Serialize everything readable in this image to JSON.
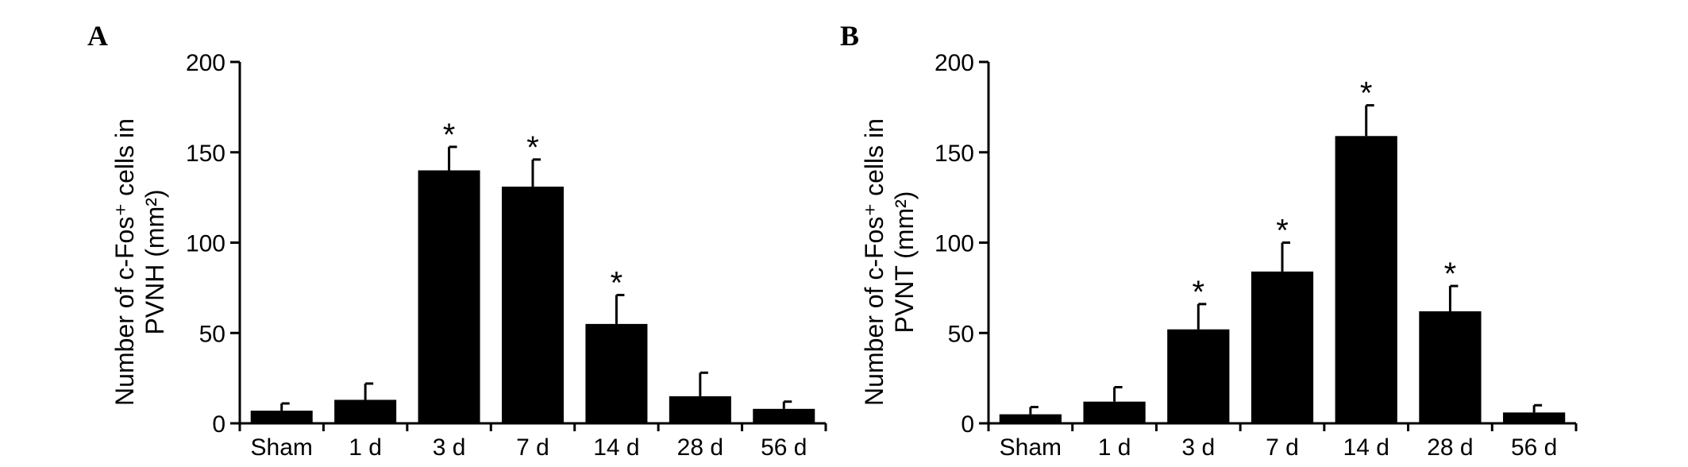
{
  "chart_data": [
    {
      "type": "bar",
      "panel": "A",
      "categories": [
        "Sham",
        "1 d",
        "3 d",
        "7 d",
        "14 d",
        "28 d",
        "56 d"
      ],
      "series": [
        {
          "values": [
            7,
            13,
            140,
            131,
            55,
            15,
            8
          ],
          "error": [
            4,
            9,
            13,
            15,
            16,
            13,
            4
          ],
          "significance": [
            "",
            "",
            "*",
            "*",
            "*",
            "",
            ""
          ]
        }
      ],
      "ylabel_line1": "Number of c-Fos⁺ cells in",
      "ylabel_line2": "PVNH (mm²)",
      "ylim": [
        0,
        200
      ],
      "yticks": [
        0,
        50,
        100,
        150,
        200
      ],
      "grid": false,
      "bar_color": "#000000"
    },
    {
      "type": "bar",
      "panel": "B",
      "categories": [
        "Sham",
        "1 d",
        "3 d",
        "7 d",
        "14 d",
        "28 d",
        "56 d"
      ],
      "series": [
        {
          "values": [
            5,
            12,
            52,
            84,
            159,
            62,
            6
          ],
          "error": [
            4,
            8,
            14,
            16,
            17,
            14,
            4
          ],
          "significance": [
            "",
            "",
            "*",
            "*",
            "*",
            "*",
            ""
          ]
        }
      ],
      "ylabel_line1": "Number of c-Fos⁺ cells in",
      "ylabel_line2": "PVNT (mm²)",
      "ylim": [
        0,
        200
      ],
      "yticks": [
        0,
        50,
        100,
        150,
        200
      ],
      "grid": false,
      "bar_color": "#000000"
    }
  ]
}
